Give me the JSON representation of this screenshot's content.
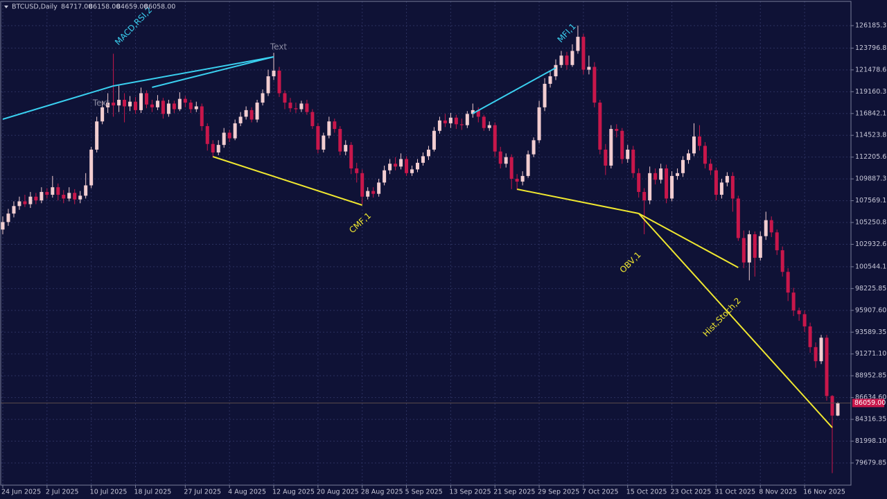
{
  "chart_data": {
    "type": "candlestick",
    "title": "BTCUSD,Daily",
    "header_values": [
      "84717.00",
      "86158.00",
      "84659.00",
      "86058.00"
    ],
    "bull_color": "#f2cdd0",
    "bear_color": "#c8174b",
    "grid": true,
    "ylim": [
      77321,
      128765
    ],
    "yticks": [
      126185.35,
      123796.85,
      {
        "value": 121478.6,
        "label": "121478.60"
      },
      119160.35,
      {
        "value": 116842.1,
        "label": "116842.10"
      },
      114523.85,
      {
        "value": 112205.6,
        "label": "112205.60"
      },
      109887.35,
      {
        "value": 107569.1,
        "label": "107569.10"
      },
      105250.85,
      {
        "value": 102932.6,
        "label": "102932.60"
      },
      {
        "value": 100544.1,
        "label": "100544.10"
      },
      98225.85,
      {
        "value": 95907.6,
        "label": "95907.60"
      },
      93589.35,
      {
        "value": 91271.1,
        "label": "91271.10"
      },
      88952.85,
      {
        "value": 86634.6,
        "label": "86634.60"
      },
      84316.35,
      {
        "value": 81998.1,
        "label": "81998.10"
      },
      79679.85
    ],
    "xticks": [
      {
        "value": 0,
        "label": "24 Jun 2025"
      },
      {
        "value": 8,
        "label": "2 Jul 2025"
      },
      {
        "value": 16,
        "label": "10 Jul 2025"
      },
      {
        "value": 24,
        "label": "18 Jul 2025"
      },
      {
        "value": 33,
        "label": "27 Jul 2025"
      },
      {
        "value": 41,
        "label": "4 Aug 2025"
      },
      {
        "value": 49,
        "label": "12 Aug 2025"
      },
      {
        "value": 57,
        "label": "20 Aug 2025"
      },
      {
        "value": 65,
        "label": "28 Aug 2025"
      },
      {
        "value": 73,
        "label": "5 Sep 2025"
      },
      {
        "value": 81,
        "label": "13 Sep 2025"
      },
      {
        "value": 89,
        "label": "21 Sep 2025"
      },
      {
        "value": 97,
        "label": "29 Sep 2025"
      },
      {
        "value": 105,
        "label": "7 Oct 2025"
      },
      {
        "value": 113,
        "label": "15 Oct 2025"
      },
      {
        "value": 121,
        "label": "23 Oct 2025"
      },
      {
        "value": 129,
        "label": "31 Oct 2025"
      },
      {
        "value": 137,
        "label": "8 Nov 2025"
      },
      {
        "value": 145,
        "label": "16 Nov 2025"
      }
    ],
    "current_price": 86059,
    "current_price_label": "86059.00",
    "candles": [
      [
        104500,
        105900,
        104000,
        105300
      ],
      [
        105300,
        106700,
        104900,
        106200
      ],
      [
        106200,
        107500,
        105800,
        107000
      ],
      [
        107000,
        108000,
        106600,
        107500
      ],
      [
        107500,
        108200,
        106900,
        107200
      ],
      [
        107200,
        108500,
        106800,
        108000
      ],
      [
        108000,
        108400,
        107200,
        107600
      ],
      [
        107600,
        109000,
        107300,
        108500
      ],
      [
        108500,
        108900,
        107800,
        108200
      ],
      [
        108200,
        110200,
        107900,
        109000
      ],
      [
        109000,
        109400,
        107600,
        108200
      ],
      [
        108200,
        108700,
        107300,
        107800
      ],
      [
        107800,
        109000,
        107500,
        108400
      ],
      [
        108400,
        108800,
        107200,
        107700
      ],
      [
        107700,
        108600,
        107300,
        108100
      ],
      [
        108100,
        110500,
        107800,
        109200
      ],
      [
        109200,
        113300,
        108900,
        113000
      ],
      [
        113000,
        116500,
        112700,
        116000
      ],
      [
        116000,
        118200,
        115700,
        117500
      ],
      [
        117500,
        119000,
        116900,
        118000
      ],
      [
        118000,
        123200,
        116500,
        117700
      ],
      [
        117700,
        119800,
        117000,
        118300
      ],
      [
        118300,
        119000,
        115900,
        117600
      ],
      [
        117600,
        118700,
        117100,
        118100
      ],
      [
        118100,
        118600,
        116800,
        117200
      ],
      [
        117200,
        119600,
        116900,
        119000
      ],
      [
        119000,
        119300,
        117400,
        117800
      ],
      [
        117800,
        118300,
        117000,
        117500
      ],
      [
        117500,
        118800,
        117200,
        118200
      ],
      [
        118200,
        118500,
        116300,
        116800
      ],
      [
        116800,
        118300,
        116500,
        117900
      ],
      [
        117900,
        118200,
        116900,
        117300
      ],
      [
        117300,
        119100,
        117100,
        118400
      ],
      [
        118400,
        118700,
        117500,
        118000
      ],
      [
        118000,
        118300,
        116900,
        117300
      ],
      [
        117300,
        118100,
        117000,
        117600
      ],
      [
        117600,
        117900,
        115000,
        115500
      ],
      [
        115500,
        115800,
        112900,
        113600
      ],
      [
        113600,
        114000,
        112200,
        112700
      ],
      [
        112700,
        114000,
        112400,
        113500
      ],
      [
        113500,
        115300,
        113200,
        114800
      ],
      [
        114800,
        115100,
        113800,
        114200
      ],
      [
        114200,
        116200,
        114000,
        115800
      ],
      [
        115800,
        117000,
        115500,
        116500
      ],
      [
        116500,
        117600,
        116200,
        117200
      ],
      [
        117200,
        117500,
        115900,
        116200
      ],
      [
        116200,
        118300,
        115900,
        118000
      ],
      [
        118000,
        119400,
        117700,
        119000
      ],
      [
        119000,
        121500,
        118700,
        120800
      ],
      [
        120800,
        123300,
        120400,
        121400
      ],
      [
        121400,
        121800,
        118600,
        119000
      ],
      [
        119000,
        119300,
        117300,
        118000
      ],
      [
        118000,
        118500,
        117000,
        117400
      ],
      [
        117400,
        118000,
        116900,
        117300
      ],
      [
        117300,
        118200,
        117000,
        117900
      ],
      [
        117900,
        118300,
        116700,
        117000
      ],
      [
        117000,
        117300,
        115200,
        115500
      ],
      [
        115500,
        115800,
        112600,
        113000
      ],
      [
        113000,
        114800,
        112700,
        114500
      ],
      [
        114500,
        116500,
        114200,
        116000
      ],
      [
        116000,
        116300,
        114800,
        115200
      ],
      [
        115200,
        115500,
        112400,
        112800
      ],
      [
        112800,
        114000,
        112400,
        113500
      ],
      [
        113500,
        113800,
        110400,
        111000
      ],
      [
        111000,
        111600,
        109500,
        110500
      ],
      [
        110500,
        110900,
        107200,
        108000
      ],
      [
        108000,
        109000,
        107700,
        108600
      ],
      [
        108600,
        109000,
        107900,
        108300
      ],
      [
        108300,
        109900,
        108000,
        109500
      ],
      [
        109500,
        111300,
        109200,
        110800
      ],
      [
        110800,
        112000,
        110400,
        111500
      ],
      [
        111500,
        112200,
        110800,
        111200
      ],
      [
        111200,
        112600,
        110900,
        112000
      ],
      [
        112000,
        112300,
        110200,
        110500
      ],
      [
        110500,
        111300,
        110200,
        110900
      ],
      [
        110900,
        112000,
        110600,
        111600
      ],
      [
        111600,
        112700,
        111300,
        112300
      ],
      [
        112300,
        113400,
        111900,
        113000
      ],
      [
        113000,
        115400,
        112800,
        115000
      ],
      [
        115000,
        116500,
        114700,
        116100
      ],
      [
        116100,
        116800,
        115400,
        115800
      ],
      [
        115800,
        116900,
        115300,
        116400
      ],
      [
        116400,
        116700,
        115200,
        115700
      ],
      [
        115700,
        116300,
        115100,
        115600
      ],
      [
        115600,
        117100,
        115300,
        116800
      ],
      [
        116800,
        117900,
        116400,
        117200
      ],
      [
        117200,
        117500,
        115900,
        116500
      ],
      [
        116500,
        116700,
        115000,
        115300
      ],
      [
        115300,
        116000,
        115000,
        115600
      ],
      [
        115600,
        115900,
        112200,
        112800
      ],
      [
        112800,
        113300,
        111000,
        111500
      ],
      [
        111500,
        112600,
        111100,
        112200
      ],
      [
        112200,
        112500,
        108800,
        109900
      ],
      [
        109900,
        110400,
        108700,
        109600
      ],
      [
        109600,
        110700,
        109200,
        110200
      ],
      [
        110200,
        112900,
        110000,
        112500
      ],
      [
        112500,
        114300,
        112200,
        114000
      ],
      [
        114000,
        118200,
        113700,
        117500
      ],
      [
        117500,
        120600,
        117100,
        120000
      ],
      [
        120000,
        121400,
        119600,
        120800
      ],
      [
        120800,
        122600,
        120400,
        122000
      ],
      [
        122000,
        123500,
        121700,
        123000
      ],
      [
        123000,
        123400,
        121500,
        122000
      ],
      [
        122000,
        124200,
        121800,
        123500
      ],
      [
        123500,
        126200,
        123200,
        125000
      ],
      [
        125000,
        125300,
        121000,
        121500
      ],
      [
        121500,
        123000,
        121000,
        121800
      ],
      [
        121800,
        122300,
        117500,
        118000
      ],
      [
        118000,
        118300,
        112500,
        113000
      ],
      [
        113000,
        113600,
        110300,
        111300
      ],
      [
        111300,
        115600,
        111000,
        115200
      ],
      [
        115200,
        115700,
        114300,
        115000
      ],
      [
        115000,
        115300,
        111500,
        112000
      ],
      [
        112000,
        113500,
        111600,
        113000
      ],
      [
        113000,
        113400,
        110000,
        110500
      ],
      [
        110500,
        111000,
        107900,
        108500
      ],
      [
        108500,
        108900,
        104000,
        107600
      ],
      [
        107600,
        111200,
        107200,
        110500
      ],
      [
        110500,
        111000,
        109300,
        109800
      ],
      [
        109800,
        111500,
        109400,
        111000
      ],
      [
        111000,
        111400,
        107300,
        107800
      ],
      [
        107800,
        110700,
        107500,
        110200
      ],
      [
        110200,
        111000,
        109800,
        110500
      ],
      [
        110500,
        112300,
        110100,
        111900
      ],
      [
        111900,
        113000,
        111500,
        112600
      ],
      [
        112600,
        115800,
        112300,
        114400
      ],
      [
        114400,
        115600,
        112900,
        113400
      ],
      [
        113400,
        113800,
        111000,
        111500
      ],
      [
        111500,
        112000,
        110300,
        110800
      ],
      [
        110800,
        111100,
        107600,
        108200
      ],
      [
        108200,
        109900,
        107800,
        109500
      ],
      [
        109500,
        110600,
        109100,
        110200
      ],
      [
        110200,
        110600,
        106400,
        107800
      ],
      [
        107800,
        108100,
        103300,
        103600
      ],
      [
        103600,
        104400,
        100400,
        101000
      ],
      [
        101000,
        104400,
        99100,
        104000
      ],
      [
        104000,
        104300,
        99500,
        101500
      ],
      [
        101500,
        104300,
        101200,
        103800
      ],
      [
        103800,
        106400,
        103400,
        105500
      ],
      [
        105500,
        105900,
        103700,
        104200
      ],
      [
        104200,
        104500,
        101800,
        102300
      ],
      [
        102300,
        102700,
        99500,
        100000
      ],
      [
        100000,
        100400,
        96900,
        97800
      ],
      [
        97800,
        98300,
        95300,
        95900
      ],
      [
        95900,
        96200,
        94800,
        95500
      ],
      [
        95500,
        95900,
        93600,
        94200
      ],
      [
        94200,
        94600,
        91400,
        92000
      ],
      [
        92000,
        92500,
        89800,
        90500
      ],
      [
        90500,
        93300,
        90200,
        93000
      ],
      [
        93000,
        93300,
        86300,
        86800
      ],
      [
        86800,
        86900,
        78600,
        84717
      ],
      [
        84717,
        86158,
        84659,
        86058
      ]
    ],
    "lines": [
      {
        "color": "#3ad0f0",
        "from": [
          0,
          116235
        ],
        "to": [
          20,
          119773
        ]
      },
      {
        "color": "#3ad0f0",
        "from": [
          20,
          119773
        ],
        "to": [
          49,
          122869
        ]
      },
      {
        "color": "#3ad0f0",
        "from": [
          27,
          119626
        ],
        "to": [
          49,
          122869
        ]
      },
      {
        "color": "#3ad0f0",
        "from": [
          85,
          116842
        ],
        "to": [
          100,
          121700
        ]
      },
      {
        "color": "#f0e830",
        "from": [
          38,
          112256
        ],
        "to": [
          65,
          107097
        ]
      },
      {
        "color": "#f0e830",
        "from": [
          93,
          108793
        ],
        "to": [
          115,
          106213
        ]
      },
      {
        "color": "#f0e830",
        "from": [
          115,
          106213
        ],
        "to": [
          133,
          100465
        ]
      },
      {
        "color": "#f0e830",
        "from": [
          115,
          106213
        ],
        "to": [
          150,
          83440
        ]
      }
    ],
    "labels": [
      {
        "text": "MACD,RSI,2",
        "color": "#3ad0f0"
      },
      {
        "text": "Text",
        "color": "#8a8aa0"
      },
      {
        "text": "Text",
        "color": "#8a8aa0"
      },
      {
        "text": "CMF,1",
        "color": "#f0e830"
      },
      {
        "text": "MFI,1",
        "color": "#3ad0f0"
      },
      {
        "text": "OBV,1",
        "color": "#f0e830"
      },
      {
        "text": "Hist,Stoch,2",
        "color": "#f0e830"
      }
    ]
  }
}
